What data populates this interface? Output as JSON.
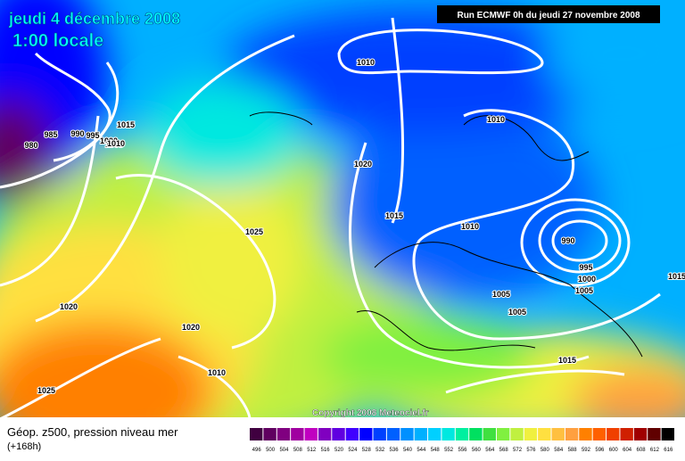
{
  "header": {
    "date": "jeudi 4 décembre 2008",
    "time": "1:00 locale",
    "run": "Run ECMWF 0h du jeudi 27 novembre 2008"
  },
  "footer": {
    "title": "Géop. z500, pression niveau mer",
    "lead": "(+168h)",
    "copyright": "Copyright 2008 Meteociel.fr"
  },
  "isobar_labels": [
    "1010",
    "1010",
    "980",
    "985",
    "990",
    "995",
    "1000",
    "1005",
    "1015",
    "1010",
    "1020",
    "1015",
    "1010",
    "1025",
    "990",
    "995",
    "1000",
    "1005",
    "1005",
    "1005",
    "1020",
    "1020",
    "1010",
    "1025",
    "1015",
    "1015"
  ],
  "colorbar": [
    {
      "value": 496,
      "color": "#400040"
    },
    {
      "value": 500,
      "color": "#600060"
    },
    {
      "value": 504,
      "color": "#800080"
    },
    {
      "value": 508,
      "color": "#a000a0"
    },
    {
      "value": 512,
      "color": "#c000c0"
    },
    {
      "value": 516,
      "color": "#8000c0"
    },
    {
      "value": 520,
      "color": "#6000e0"
    },
    {
      "value": 524,
      "color": "#4000ff"
    },
    {
      "value": 528,
      "color": "#0000ff"
    },
    {
      "value": 532,
      "color": "#0040ff"
    },
    {
      "value": 536,
      "color": "#0060ff"
    },
    {
      "value": 540,
      "color": "#0090ff"
    },
    {
      "value": 544,
      "color": "#00b0ff"
    },
    {
      "value": 548,
      "color": "#00d0ff"
    },
    {
      "value": 552,
      "color": "#00e8e0"
    },
    {
      "value": 556,
      "color": "#00f0a0"
    },
    {
      "value": 560,
      "color": "#00e060"
    },
    {
      "value": 564,
      "color": "#40e040"
    },
    {
      "value": 568,
      "color": "#80f040"
    },
    {
      "value": 572,
      "color": "#c0f040"
    },
    {
      "value": 576,
      "color": "#f0f040"
    },
    {
      "value": 580,
      "color": "#ffe040"
    },
    {
      "value": 584,
      "color": "#ffc040"
    },
    {
      "value": 588,
      "color": "#ffa040"
    },
    {
      "value": 592,
      "color": "#ff8000"
    },
    {
      "value": 596,
      "color": "#ff6000"
    },
    {
      "value": 600,
      "color": "#f04000"
    },
    {
      "value": 604,
      "color": "#d02000"
    },
    {
      "value": 608,
      "color": "#a00000"
    },
    {
      "value": 612,
      "color": "#600000"
    },
    {
      "value": 616,
      "color": "#000000"
    }
  ]
}
